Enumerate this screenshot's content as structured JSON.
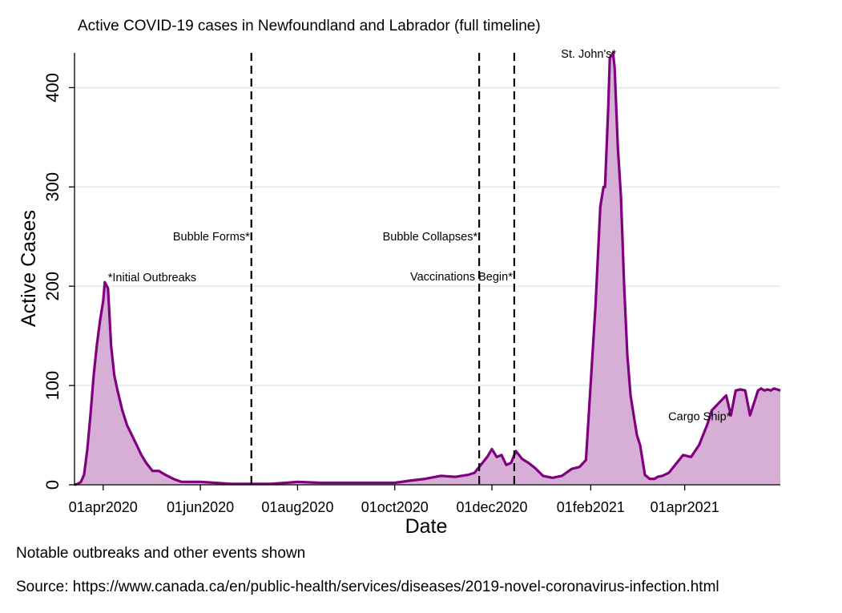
{
  "chart_data": {
    "type": "area",
    "title": "Active COVID-19 cases in Newfoundland and Labrador (full timeline)",
    "xlabel": "Date",
    "ylabel": "Active Cases",
    "xlim": [
      "2020-03-14",
      "2021-05-31"
    ],
    "ylim": [
      0,
      435
    ],
    "yticks": [
      0,
      100,
      200,
      300,
      400
    ],
    "xticks": [
      {
        "date": "2020-04-01",
        "label": "01apr2020"
      },
      {
        "date": "2020-06-01",
        "label": "01jun2020"
      },
      {
        "date": "2020-08-01",
        "label": "01aug2020"
      },
      {
        "date": "2020-10-01",
        "label": "01oct2020"
      },
      {
        "date": "2020-12-01",
        "label": "01dec2020"
      },
      {
        "date": "2021-02-01",
        "label": "01feb2021"
      },
      {
        "date": "2021-04-01",
        "label": "01apr2021"
      }
    ],
    "grid": "horizontal",
    "colors": {
      "line": "#800080",
      "fill": "#d6aed6",
      "grid": "#e3eef0",
      "event_line": "#000000"
    },
    "events": [
      {
        "date": "2020-07-03",
        "label": "Bubble Forms*",
        "y": 250
      },
      {
        "date": "2020-11-23",
        "label": "Bubble Collapses*",
        "y": 250
      },
      {
        "date": "2020-12-15",
        "label": "Vaccinations Begin*",
        "y": 210
      }
    ],
    "annotations": [
      {
        "date": "2020-04-04",
        "y": 209,
        "text": "*Initial Outbreaks",
        "anchor": "start"
      },
      {
        "date": "2021-02-17",
        "y": 434,
        "text": "St. John's*",
        "anchor": "end"
      },
      {
        "date": "2021-04-30",
        "y": 69,
        "text": "Cargo Ship*",
        "anchor": "end"
      }
    ],
    "series": [
      {
        "x": [
          "2020-03-14",
          "2020-03-16",
          "2020-03-18",
          "2020-03-20",
          "2020-03-22",
          "2020-03-24",
          "2020-03-26",
          "2020-03-28",
          "2020-03-30",
          "2020-04-01",
          "2020-04-02",
          "2020-04-04",
          "2020-04-06",
          "2020-04-08",
          "2020-04-10",
          "2020-04-13",
          "2020-04-16",
          "2020-04-19",
          "2020-04-22",
          "2020-04-25",
          "2020-04-28",
          "2020-05-02",
          "2020-05-06",
          "2020-05-10",
          "2020-05-15",
          "2020-05-20",
          "2020-05-25",
          "2020-06-01",
          "2020-06-10",
          "2020-06-20",
          "2020-07-01",
          "2020-07-15",
          "2020-07-25",
          "2020-08-01",
          "2020-08-15",
          "2020-09-01",
          "2020-09-20",
          "2020-10-01",
          "2020-10-10",
          "2020-10-20",
          "2020-10-30",
          "2020-11-08",
          "2020-11-16",
          "2020-11-20",
          "2020-11-24",
          "2020-11-28",
          "2020-12-01",
          "2020-12-04",
          "2020-12-07",
          "2020-12-10",
          "2020-12-13",
          "2020-12-16",
          "2020-12-20",
          "2020-12-24",
          "2020-12-28",
          "2021-01-02",
          "2021-01-08",
          "2021-01-14",
          "2021-01-20",
          "2021-01-25",
          "2021-01-29",
          "2021-02-04",
          "2021-02-07",
          "2021-02-09",
          "2021-02-10",
          "2021-02-12",
          "2021-02-13",
          "2021-02-15",
          "2021-02-16",
          "2021-02-17",
          "2021-02-18",
          "2021-02-20",
          "2021-02-22",
          "2021-02-24",
          "2021-02-26",
          "2021-02-28",
          "2021-03-02",
          "2021-03-04",
          "2021-03-07",
          "2021-03-10",
          "2021-03-13",
          "2021-03-15",
          "2021-03-18",
          "2021-03-22",
          "2021-03-26",
          "2021-03-31",
          "2021-04-05",
          "2021-04-10",
          "2021-04-15",
          "2021-04-18",
          "2021-04-21",
          "2021-04-24",
          "2021-04-27",
          "2021-04-30",
          "2021-05-03",
          "2021-05-06",
          "2021-05-09",
          "2021-05-12",
          "2021-05-15",
          "2021-05-17",
          "2021-05-19",
          "2021-05-21",
          "2021-05-23",
          "2021-05-25",
          "2021-05-27",
          "2021-05-29",
          "2021-05-31"
        ],
        "values": [
          0,
          1,
          3,
          10,
          35,
          70,
          110,
          140,
          165,
          185,
          204,
          198,
          140,
          110,
          95,
          75,
          60,
          50,
          40,
          30,
          22,
          14,
          14,
          10,
          6,
          3,
          3,
          3,
          2,
          1,
          1,
          1,
          2,
          3,
          2,
          2,
          2,
          2,
          4,
          6,
          9,
          8,
          10,
          12,
          20,
          28,
          36,
          28,
          30,
          20,
          22,
          34,
          26,
          22,
          17,
          9,
          7,
          9,
          16,
          18,
          25,
          180,
          280,
          300,
          300,
          380,
          430,
          435,
          420,
          380,
          340,
          290,
          200,
          130,
          90,
          70,
          50,
          40,
          10,
          6,
          6,
          8,
          9,
          12,
          20,
          30,
          28,
          40,
          60,
          75,
          80,
          85,
          90,
          70,
          95,
          96,
          95,
          70,
          85,
          95,
          97,
          95,
          96,
          95,
          97,
          96,
          95
        ]
      }
    ]
  },
  "footer": {
    "note": "Notable outbreaks and other events shown",
    "source": "Source: https://www.canada.ca/en/public-health/services/diseases/2019-novel-coronavirus-infection.html"
  }
}
